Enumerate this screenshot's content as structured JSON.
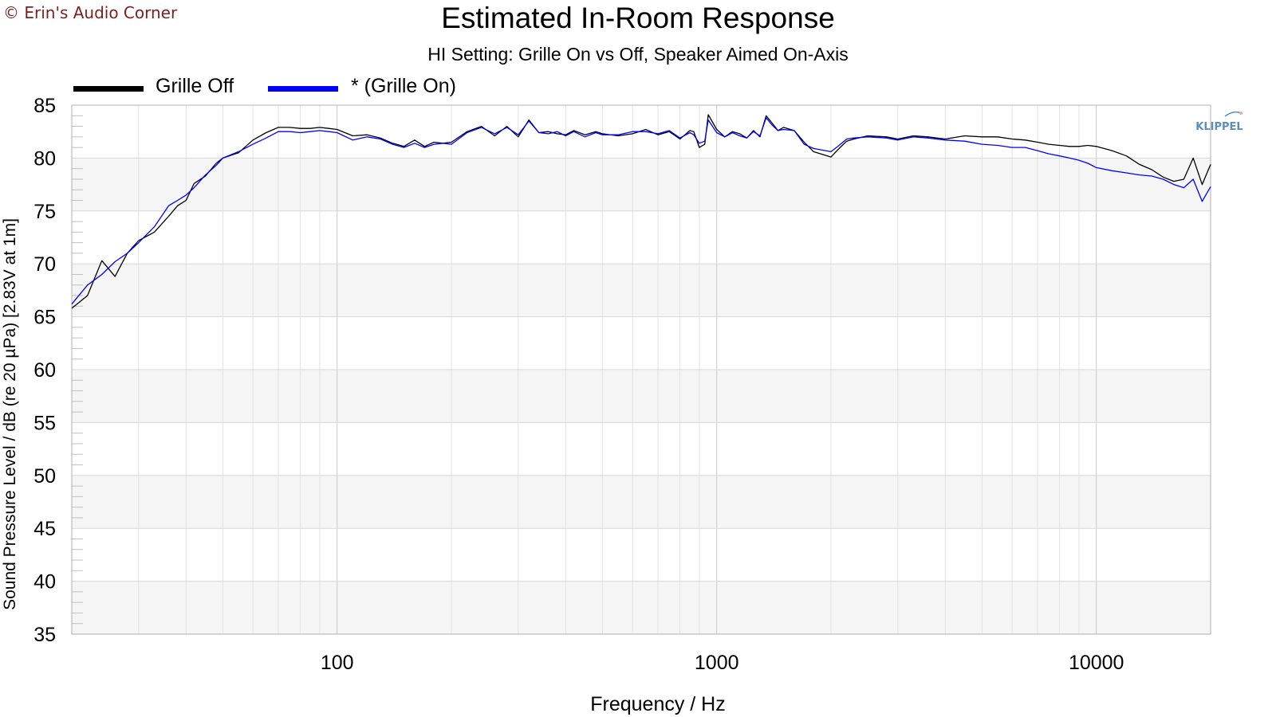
{
  "copyright": "© Erin's Audio Corner",
  "logo_text": "KLIPPEL",
  "colors": {
    "series_black": "#000000",
    "series_blue": "#0000ff",
    "band": "#f5f5f5",
    "grid": "#d4d4d4",
    "logo": "#5a8fb8"
  },
  "chart_data": {
    "type": "line",
    "title": "Estimated In-Room Response",
    "subtitle": "HI Setting: Grille On vs Off, Speaker Aimed On-Axis",
    "xlabel": "Frequency / Hz",
    "ylabel": "Sound Pressure Level / dB (re 20 µPa)  [2.83V at 1m]",
    "xscale": "log",
    "xlim": [
      20,
      20000
    ],
    "ylim": [
      35,
      85
    ],
    "xticks": [
      100,
      1000,
      10000
    ],
    "xtick_labels": [
      "100",
      "1000",
      "10000"
    ],
    "yticks": [
      35,
      40,
      45,
      50,
      55,
      60,
      65,
      70,
      75,
      80,
      85
    ],
    "ytick_labels": [
      "35",
      "40",
      "45",
      "50",
      "55",
      "60",
      "65",
      "70",
      "75",
      "80",
      "85"
    ],
    "grid": true,
    "legend_position": "top-left",
    "series": [
      {
        "name": "Grille Off",
        "color": "#000000",
        "x": [
          20,
          22,
          24,
          26,
          28,
          30,
          33,
          36,
          38,
          40,
          42,
          45,
          48,
          50,
          55,
          60,
          65,
          70,
          75,
          80,
          85,
          90,
          95,
          100,
          110,
          120,
          130,
          140,
          150,
          160,
          170,
          180,
          190,
          200,
          220,
          240,
          260,
          280,
          300,
          320,
          340,
          360,
          380,
          400,
          420,
          450,
          480,
          500,
          550,
          600,
          650,
          700,
          750,
          800,
          850,
          870,
          900,
          930,
          950,
          1000,
          1050,
          1100,
          1150,
          1200,
          1250,
          1300,
          1350,
          1400,
          1450,
          1500,
          1600,
          1700,
          1800,
          2000,
          2100,
          2200,
          2300,
          2500,
          2800,
          3000,
          3300,
          3600,
          4000,
          4500,
          5000,
          5500,
          6000,
          6500,
          7000,
          7500,
          8000,
          8500,
          9000,
          9500,
          10000,
          11000,
          12000,
          13000,
          14000,
          15000,
          16000,
          17000,
          18000,
          19000,
          20000
        ],
        "y": [
          65.8,
          67.0,
          70.3,
          68.8,
          71.0,
          72.2,
          73.0,
          74.5,
          75.5,
          76.0,
          77.6,
          78.3,
          79.5,
          80.0,
          80.5,
          81.7,
          82.4,
          82.9,
          82.9,
          82.8,
          82.8,
          82.9,
          82.8,
          82.7,
          82.1,
          82.2,
          81.9,
          81.4,
          81.1,
          81.7,
          81.1,
          81.5,
          81.4,
          81.5,
          82.5,
          83.0,
          82.1,
          83.0,
          82.0,
          83.6,
          82.4,
          82.5,
          82.3,
          82.2,
          82.6,
          82.2,
          82.5,
          82.3,
          82.1,
          82.3,
          82.7,
          82.2,
          82.5,
          81.8,
          82.6,
          82.5,
          81.0,
          81.3,
          84.1,
          82.7,
          82.0,
          82.5,
          82.3,
          81.9,
          82.6,
          82.0,
          84.0,
          83.3,
          82.6,
          82.9,
          82.6,
          81.5,
          80.6,
          80.1,
          80.9,
          81.6,
          81.8,
          82.1,
          82.0,
          81.8,
          82.1,
          82.0,
          81.8,
          82.1,
          82.0,
          82.0,
          81.8,
          81.7,
          81.5,
          81.3,
          81.2,
          81.1,
          81.1,
          81.2,
          81.1,
          80.7,
          80.2,
          79.4,
          78.9,
          78.2,
          77.8,
          78.0,
          80.0,
          77.5,
          79.4
        ]
      },
      {
        "name": "* (Grille On)",
        "color": "#0000ff",
        "x": [
          20,
          22,
          24,
          26,
          28,
          30,
          33,
          36,
          38,
          40,
          42,
          45,
          48,
          50,
          55,
          60,
          65,
          70,
          75,
          80,
          85,
          90,
          95,
          100,
          110,
          120,
          130,
          140,
          150,
          160,
          170,
          180,
          190,
          200,
          220,
          240,
          260,
          280,
          300,
          320,
          340,
          360,
          380,
          400,
          420,
          450,
          480,
          500,
          550,
          600,
          650,
          700,
          750,
          800,
          850,
          870,
          900,
          930,
          950,
          1000,
          1050,
          1100,
          1150,
          1200,
          1250,
          1300,
          1350,
          1400,
          1450,
          1500,
          1600,
          1700,
          1800,
          2000,
          2100,
          2200,
          2300,
          2500,
          2800,
          3000,
          3300,
          3600,
          4000,
          4500,
          5000,
          5500,
          6000,
          6500,
          7000,
          7500,
          8000,
          8500,
          9000,
          9500,
          10000,
          11000,
          12000,
          13000,
          14000,
          15000,
          16000,
          17000,
          18000,
          19000,
          20000
        ],
        "y": [
          66.2,
          68.0,
          69.0,
          70.2,
          71.0,
          72.0,
          73.5,
          75.5,
          76.0,
          76.5,
          77.2,
          78.4,
          79.3,
          80.0,
          80.6,
          81.3,
          81.9,
          82.5,
          82.5,
          82.4,
          82.5,
          82.6,
          82.5,
          82.4,
          81.7,
          82.0,
          81.8,
          81.3,
          81.0,
          81.4,
          81.0,
          81.3,
          81.4,
          81.3,
          82.4,
          82.9,
          82.3,
          82.9,
          82.2,
          83.5,
          82.4,
          82.3,
          82.5,
          82.1,
          82.5,
          82.0,
          82.4,
          82.2,
          82.2,
          82.5,
          82.5,
          82.3,
          82.6,
          81.9,
          82.4,
          82.2,
          81.4,
          81.6,
          83.6,
          82.4,
          82.0,
          82.4,
          82.1,
          81.9,
          82.5,
          82.1,
          83.8,
          83.1,
          82.6,
          82.7,
          82.6,
          81.3,
          80.9,
          80.6,
          81.2,
          81.8,
          81.9,
          82.0,
          81.9,
          81.7,
          82.0,
          81.9,
          81.7,
          81.6,
          81.3,
          81.2,
          81.0,
          81.0,
          80.7,
          80.4,
          80.2,
          80.0,
          79.8,
          79.5,
          79.1,
          78.8,
          78.6,
          78.4,
          78.3,
          78.0,
          77.5,
          77.2,
          78.0,
          75.9,
          77.3
        ]
      }
    ]
  }
}
